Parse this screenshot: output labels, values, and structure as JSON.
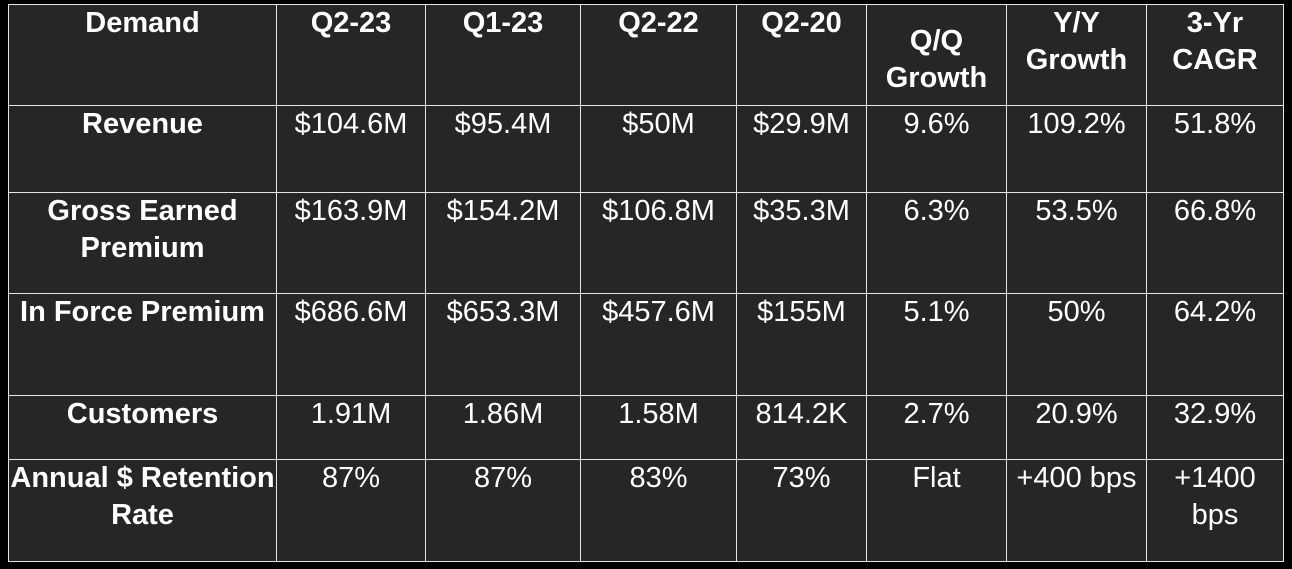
{
  "table": {
    "columns": [
      "Demand",
      "Q2-23",
      "Q1-23",
      "Q2-22",
      "Q2-20",
      "Q/Q Growth",
      "Y/Y Growth",
      "3-Yr CAGR"
    ],
    "rows": [
      {
        "label": "Revenue",
        "values": [
          "$104.6M",
          "$95.4M",
          "$50M",
          "$29.9M",
          "9.6%",
          "109.2%",
          "51.8%"
        ]
      },
      {
        "label": "Gross Earned Premium",
        "values": [
          "$163.9M",
          "$154.2M",
          "$106.8M",
          "$35.3M",
          "6.3%",
          "53.5%",
          "66.8%"
        ]
      },
      {
        "label": "In Force Premium",
        "values": [
          "$686.6M",
          "$653.3M",
          "$457.6M",
          "$155M",
          "5.1%",
          "50%",
          "64.2%"
        ]
      },
      {
        "label": "Customers",
        "values": [
          "1.91M",
          "1.86M",
          "1.58M",
          "814.2K",
          "2.7%",
          "20.9%",
          "32.9%"
        ]
      },
      {
        "label": "Annual $ Retention Rate",
        "values": [
          "87%",
          "87%",
          "83%",
          "73%",
          "Flat",
          "+400 bps",
          "+1400 bps"
        ]
      }
    ]
  },
  "colors": {
    "page_background": "#000000",
    "cell_background": "#262626",
    "grid_lines": "#e6e6e6",
    "text": "#ffffff"
  }
}
